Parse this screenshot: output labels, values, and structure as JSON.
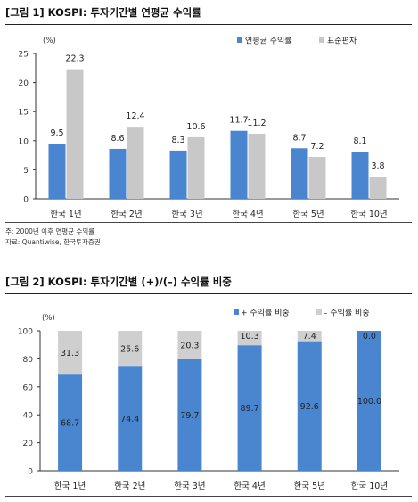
{
  "figure1": {
    "title": "[그림 1] KOSPI: 투자기간별 연평균 수익률",
    "note": "주: 2000년 이후 연평균 수익률",
    "source": "자료: Quantiwise, 한국투자증권",
    "chart_data": {
      "type": "bar",
      "unit_label": "(%)",
      "categories": [
        "한국 1년",
        "한국 2년",
        "한국 3년",
        "한국 4년",
        "한국 5년",
        "한국 10년"
      ],
      "series": [
        {
          "name": "연평균 수익률",
          "color": "#4a86cf",
          "values": [
            9.5,
            8.6,
            8.3,
            11.7,
            8.7,
            8.1
          ]
        },
        {
          "name": "표준편차",
          "color": "#c8c8c8",
          "values": [
            22.3,
            12.4,
            10.6,
            11.2,
            7.2,
            3.8
          ]
        }
      ],
      "ylim": [
        0,
        25
      ],
      "yticks": [
        0,
        5,
        10,
        15,
        20,
        25
      ],
      "legend": "top-right",
      "grid": false
    }
  },
  "figure2": {
    "title": "[그림 2] KOSPI: 투자기간별 (+)/(–) 수익률 비중",
    "chart_data": {
      "type": "bar",
      "stacked": true,
      "unit_label": "(%)",
      "categories": [
        "한국 1년",
        "한국 2년",
        "한국 3년",
        "한국 4년",
        "한국 5년",
        "한국 10년"
      ],
      "series": [
        {
          "name": "+ 수익률 비중",
          "color": "#4a86cf",
          "values": [
            68.7,
            74.4,
            79.7,
            89.7,
            92.6,
            100.0
          ]
        },
        {
          "name": "– 수익률 비중",
          "color": "#cfcfcf",
          "values": [
            31.3,
            25.6,
            20.3,
            10.3,
            7.4,
            0.0
          ]
        }
      ],
      "ylim": [
        0,
        100
      ],
      "yticks": [
        0,
        20,
        40,
        60,
        80,
        100
      ],
      "legend": "top-right",
      "grid": false
    }
  }
}
